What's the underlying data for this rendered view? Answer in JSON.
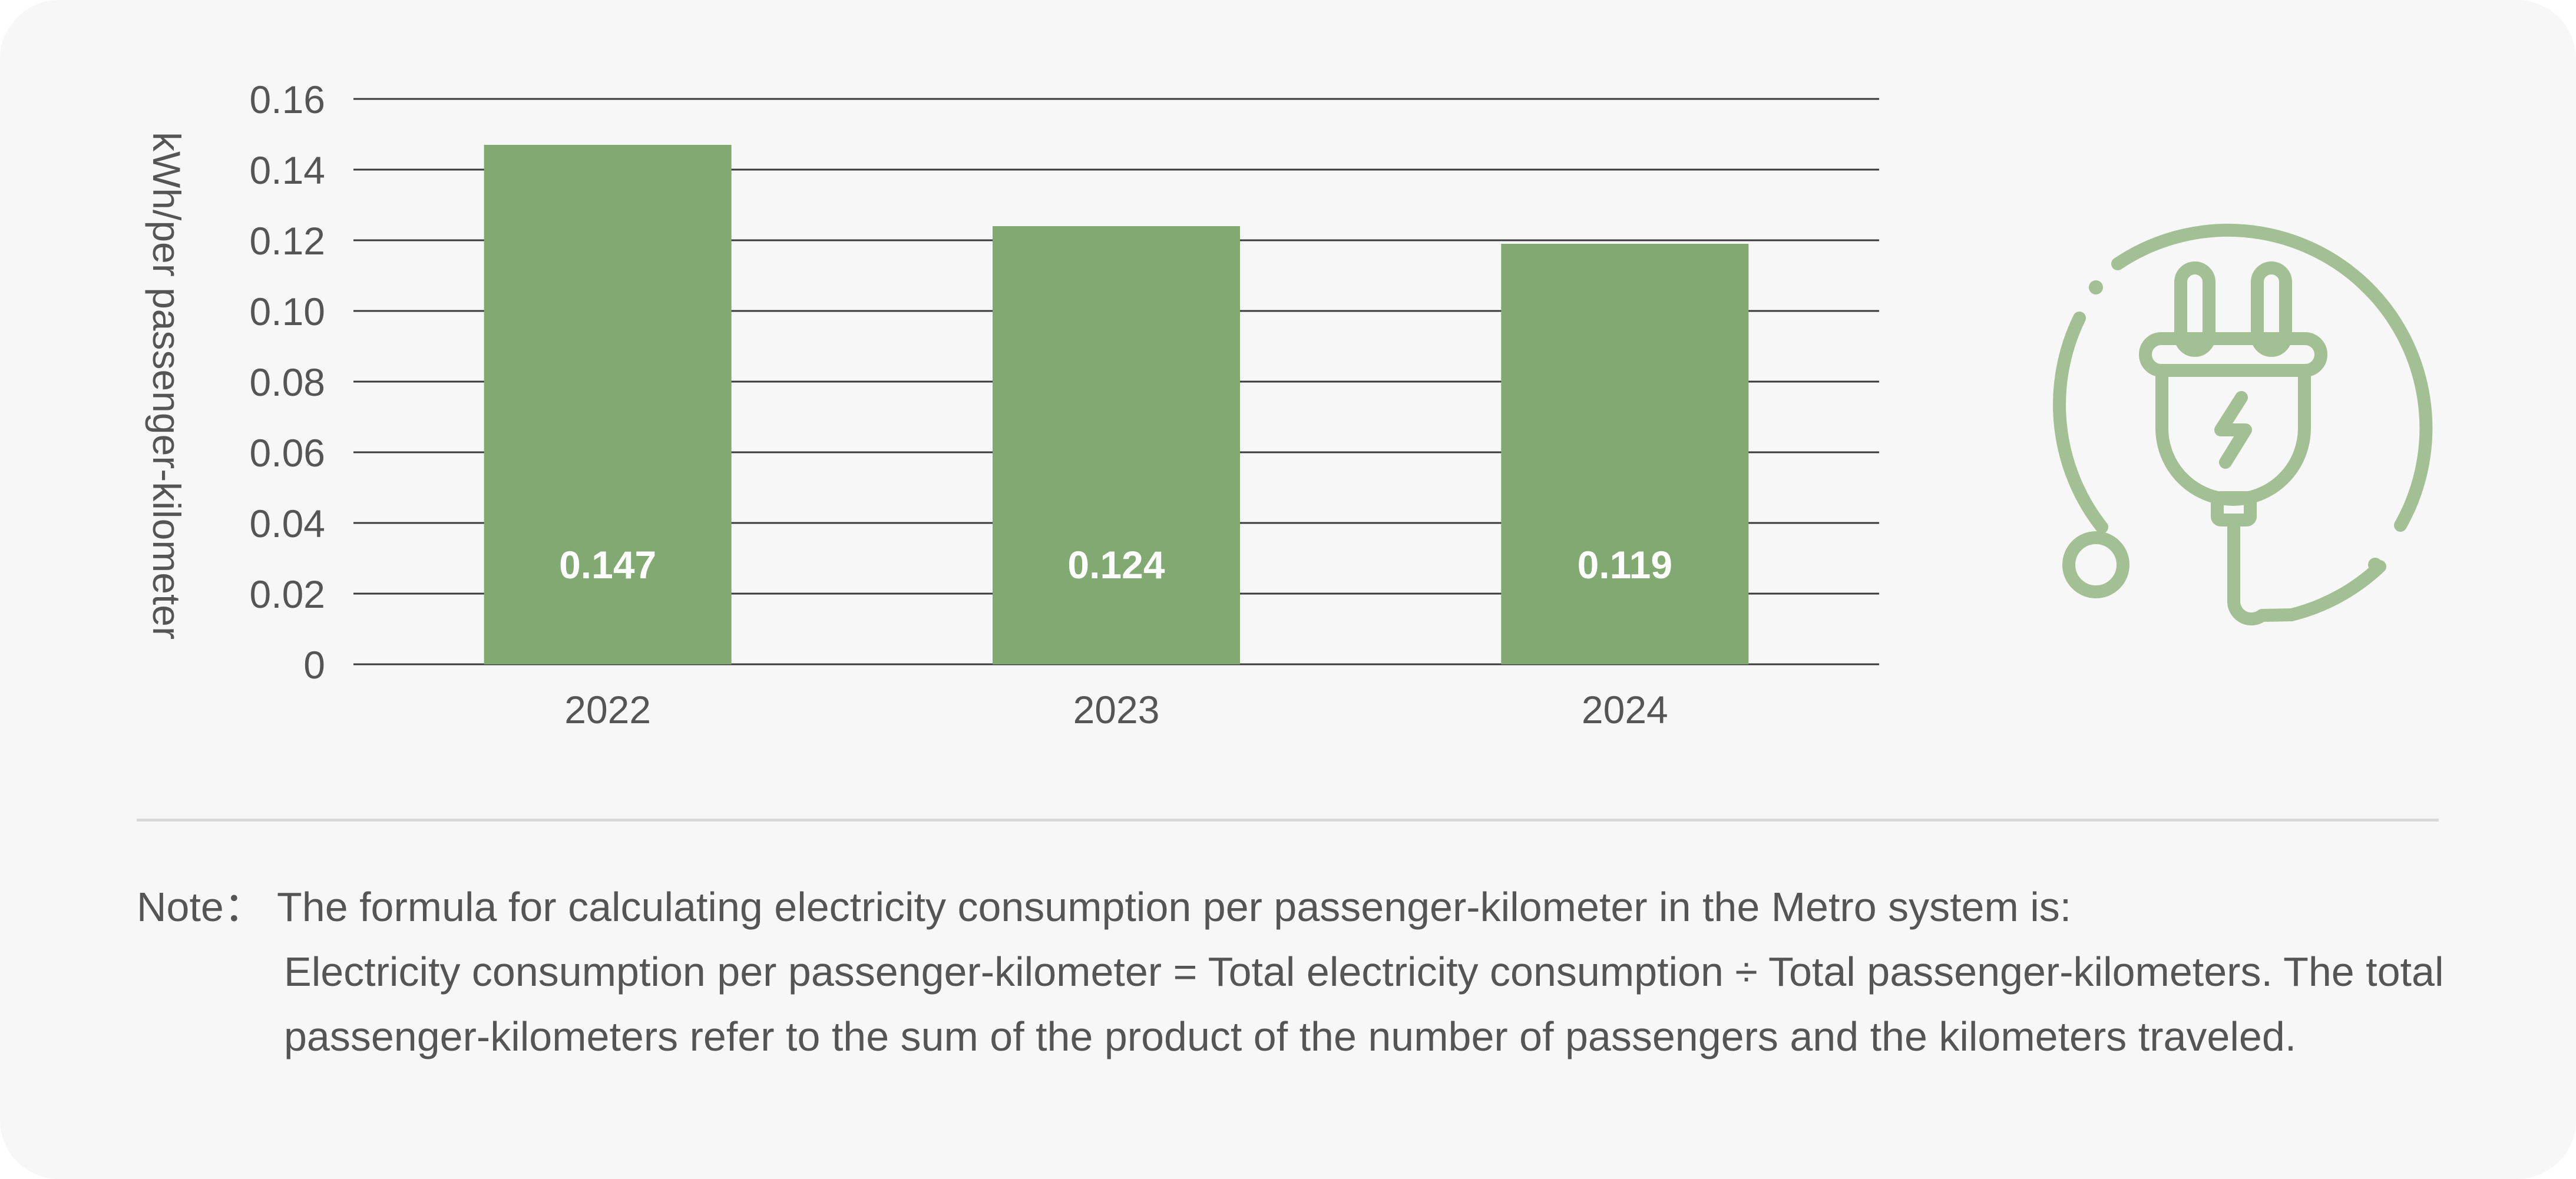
{
  "chart_data": {
    "type": "bar",
    "categories": [
      "2022",
      "2023",
      "2024"
    ],
    "values": [
      0.147,
      0.124,
      0.119
    ],
    "data_labels": [
      "0.147",
      "0.124",
      "0.119"
    ],
    "ylabel": "kWh/per passenger-kilometer",
    "xlabel": "",
    "title": "",
    "ylim": [
      0,
      0.16
    ],
    "yticks": [
      0,
      0.02,
      0.04,
      0.06,
      0.08,
      0.1,
      0.12,
      0.14,
      0.16
    ],
    "ytick_labels": [
      "0",
      "0.02",
      "0.04",
      "0.06",
      "0.08",
      "0.10",
      "0.12",
      "0.14",
      "0.16"
    ],
    "grid": true,
    "legend": "none",
    "bar_color": "#82a972",
    "data_label_color": "#ffffff"
  },
  "icon": {
    "name": "plug-icon",
    "color": "#a3c094"
  },
  "note": {
    "label": "Note",
    "separator": "：",
    "line1": "The formula for calculating electricity consumption per passenger-kilometer in the Metro system is:",
    "rest": "Electricity consumption per passenger-kilometer = Total electricity consumption ÷ Total passenger-kilometers. The total passenger-kilometers refer to the sum of the product of the number of passengers and the kilometers traveled."
  },
  "colors": {
    "background": "#f7f7f7",
    "text": "#555555",
    "gridline": "#3a3a3a",
    "divider": "#d9d9d9"
  }
}
